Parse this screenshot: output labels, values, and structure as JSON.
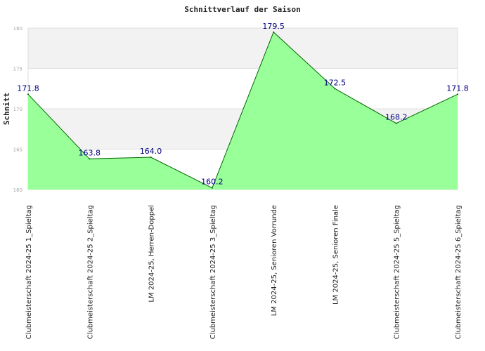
{
  "chart_data": {
    "type": "area",
    "title": "Schnittverlauf der Saison",
    "ylabel": "Schnitt",
    "xlabel": "",
    "ylim": [
      160,
      180
    ],
    "yticks": [
      160,
      165,
      170,
      175,
      180
    ],
    "grid": true,
    "legend": "none",
    "categories": [
      "Clubmeisterschaft 2024-25   1_Spieltag",
      "Clubmeisterschaft 2024-25   2_Spieltag",
      "LM 2024-25, Herren-Doppel",
      "Clubmeisterschaft 2024-25   3_Spieltag",
      "LM 2024-25, Senioren Vorrunde",
      "LM 2024-25, Senioren Finale",
      "Clubmeisterschaft 2024-25   5_Spieltag",
      "Clubmeisterschaft 2024-25   6_Spieltag"
    ],
    "values": [
      171.8,
      163.8,
      164.0,
      160.2,
      179.5,
      172.5,
      168.2,
      171.8
    ],
    "data_labels": [
      "171.8",
      "163.8",
      "164.0",
      "160.2",
      "179.5",
      "172.5",
      "168.2",
      "171.8"
    ],
    "colors": {
      "fill": "#99ff99",
      "line": "#006600",
      "label": "#000080",
      "band": "#f2f2f2",
      "grid": "#e0e0e0"
    }
  }
}
